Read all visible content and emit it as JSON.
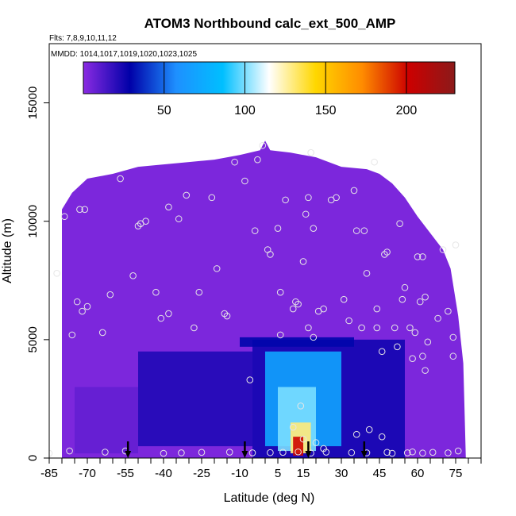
{
  "chart_data": {
    "type": "heatmap",
    "title": "ATOM3 Northbound calc_ext_500_AMP",
    "subtitle_flights": "Flts: 7,8,9,10,11,12",
    "subtitle_dates": "MMDD: 1014,1017,1019,1020,1023,1025",
    "xlabel": "Latitude (deg N)",
    "ylabel": "Altitude (m)",
    "xlim": [
      -85,
      85
    ],
    "ylim": [
      0,
      17500
    ],
    "x_ticks": [
      -85,
      -70,
      -55,
      -40,
      -25,
      -10,
      5,
      15,
      30,
      45,
      60,
      75
    ],
    "y_ticks": [
      0,
      5000,
      10000,
      15000
    ],
    "grid": false,
    "colorbar": {
      "range": [
        0,
        230
      ],
      "ticks": [
        50,
        100,
        150,
        200
      ],
      "colors": [
        "#8a2be2",
        "#0000a8",
        "#1e90ff",
        "#00bfff",
        "#ffffff",
        "#ffd700",
        "#ff8c00",
        "#cc0000",
        "#8b1a1a"
      ]
    },
    "background_value": 3,
    "field_regions": [
      {
        "lat": [
          -5,
          55
        ],
        "alt": [
          0,
          5000
        ],
        "value": 25
      },
      {
        "lat": [
          -50,
          -5
        ],
        "alt": [
          500,
          4500
        ],
        "value": 22
      },
      {
        "lat": [
          0,
          30
        ],
        "alt": [
          500,
          4500
        ],
        "value": 70
      },
      {
        "lat": [
          5,
          20
        ],
        "alt": [
          300,
          3000
        ],
        "value": 100
      },
      {
        "lat": [
          10,
          18
        ],
        "alt": [
          200,
          1500
        ],
        "value": 130
      },
      {
        "lat": [
          11,
          15
        ],
        "alt": [
          100,
          900
        ],
        "value": 200
      },
      {
        "lat": [
          -10,
          35
        ],
        "alt": [
          4700,
          5100
        ],
        "value": 30
      },
      {
        "lat": [
          -75,
          -50
        ],
        "alt": [
          200,
          3000
        ],
        "value": 8
      }
    ],
    "sample_points": [
      [
        -82,
        7800
      ],
      [
        -79,
        10200
      ],
      [
        -76,
        5200
      ],
      [
        -74,
        6600
      ],
      [
        -73,
        10500
      ],
      [
        -71,
        10500
      ],
      [
        -72,
        6200
      ],
      [
        -70,
        6400
      ],
      [
        -64,
        5300
      ],
      [
        -61,
        6900
      ],
      [
        -57,
        11800
      ],
      [
        -52,
        7700
      ],
      [
        -50,
        9800
      ],
      [
        -49,
        9900
      ],
      [
        -47,
        10000
      ],
      [
        -43,
        7000
      ],
      [
        -41,
        5900
      ],
      [
        -38,
        6100
      ],
      [
        -38,
        10600
      ],
      [
        -34,
        10100
      ],
      [
        -31,
        11100
      ],
      [
        -28,
        5500
      ],
      [
        -26,
        7000
      ],
      [
        -21,
        11000
      ],
      [
        -19,
        8000
      ],
      [
        -16,
        6100
      ],
      [
        -15,
        6000
      ],
      [
        -12,
        12500
      ],
      [
        -8,
        11700
      ],
      [
        -3,
        12600
      ],
      [
        -1,
        13200
      ],
      [
        -4,
        9600
      ],
      [
        1,
        8800
      ],
      [
        2,
        8600
      ],
      [
        5,
        9700
      ],
      [
        6,
        5200
      ],
      [
        6,
        7000
      ],
      [
        8,
        10900
      ],
      [
        11,
        6300
      ],
      [
        13,
        6500
      ],
      [
        12,
        6600
      ],
      [
        15,
        8300
      ],
      [
        16,
        10300
      ],
      [
        17,
        11000
      ],
      [
        18,
        12900
      ],
      [
        19,
        9700
      ],
      [
        17,
        5500
      ],
      [
        19,
        5100
      ],
      [
        21,
        6200
      ],
      [
        23,
        6300
      ],
      [
        26,
        10900
      ],
      [
        28,
        11000
      ],
      [
        31,
        6700
      ],
      [
        33,
        5800
      ],
      [
        35,
        11300
      ],
      [
        36,
        9600
      ],
      [
        38,
        5500
      ],
      [
        39,
        9600
      ],
      [
        40,
        7800
      ],
      [
        43,
        12500
      ],
      [
        44,
        6300
      ],
      [
        44,
        5500
      ],
      [
        46,
        4500
      ],
      [
        47,
        8600
      ],
      [
        48,
        8700
      ],
      [
        51,
        5500
      ],
      [
        52,
        4700
      ],
      [
        53,
        9900
      ],
      [
        54,
        6700
      ],
      [
        55,
        7200
      ],
      [
        57,
        5500
      ],
      [
        58,
        4200
      ],
      [
        59,
        5300
      ],
      [
        60,
        8500
      ],
      [
        61,
        6600
      ],
      [
        62,
        8500
      ],
      [
        63,
        6800
      ],
      [
        62,
        4300
      ],
      [
        63,
        3700
      ],
      [
        64,
        4900
      ],
      [
        68,
        5900
      ],
      [
        70,
        8800
      ],
      [
        72,
        6200
      ],
      [
        74,
        5100
      ],
      [
        75,
        9000
      ],
      [
        74,
        4300
      ],
      [
        -85,
        200
      ],
      [
        -77,
        300
      ],
      [
        -63,
        250
      ],
      [
        -55,
        300
      ],
      [
        -40,
        200
      ],
      [
        -33,
        220
      ],
      [
        -25,
        240
      ],
      [
        -14,
        250
      ],
      [
        -5,
        220
      ],
      [
        2,
        230
      ],
      [
        7,
        240
      ],
      [
        13,
        260
      ],
      [
        18,
        210
      ],
      [
        24,
        250
      ],
      [
        34,
        230
      ],
      [
        40,
        220
      ],
      [
        48,
        240
      ],
      [
        50,
        200
      ],
      [
        56,
        220
      ],
      [
        58,
        260
      ],
      [
        62,
        210
      ],
      [
        66,
        240
      ],
      [
        72,
        220
      ],
      [
        76,
        300
      ],
      [
        -6,
        3300
      ],
      [
        11,
        1300
      ],
      [
        14,
        2200
      ],
      [
        15,
        800
      ],
      [
        20,
        650
      ],
      [
        23,
        400
      ],
      [
        36,
        1000
      ],
      [
        41,
        1200
      ],
      [
        46,
        900
      ]
    ],
    "arrows_lat": [
      -54,
      -8,
      17,
      39
    ]
  }
}
